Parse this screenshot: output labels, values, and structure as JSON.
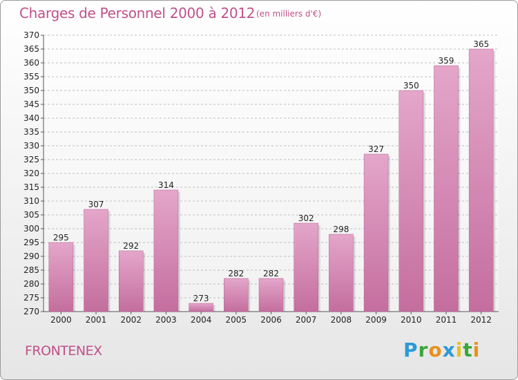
{
  "header": {
    "title": "Charges de Personnel 2000 à 2012",
    "subtitle": "(en milliers d'€)"
  },
  "footer": {
    "commune": "FRONTENEX",
    "logo": [
      {
        "char": "P",
        "color": "#2a9ad6"
      },
      {
        "char": "r",
        "color": "#3aa63a"
      },
      {
        "char": "o",
        "color": "#e8911c"
      },
      {
        "char": "x",
        "color": "#2a9ad6"
      },
      {
        "char": "i",
        "color": "#e8c21c"
      },
      {
        "char": "t",
        "color": "#3aa63a"
      },
      {
        "char": "i",
        "color": "#e8911c"
      }
    ]
  },
  "colors": {
    "bar": "#c46e9e",
    "barLight": "#e4a6ca",
    "text": "#c0508a",
    "grid": "#bdbdbd"
  },
  "chart_data": {
    "type": "bar",
    "title": "Charges de Personnel 2000 à 2012",
    "unit": "(en milliers d'€)",
    "categories": [
      "2000",
      "2001",
      "2002",
      "2003",
      "2004",
      "2005",
      "2006",
      "2007",
      "2008",
      "2009",
      "2010",
      "2011",
      "2012"
    ],
    "values": [
      295,
      307,
      292,
      314,
      273,
      282,
      282,
      302,
      298,
      327,
      350,
      359,
      365
    ],
    "ylim": [
      270,
      370
    ],
    "ystep": 5,
    "xlabel": "",
    "ylabel": "",
    "grid": "horizontal dashed"
  }
}
